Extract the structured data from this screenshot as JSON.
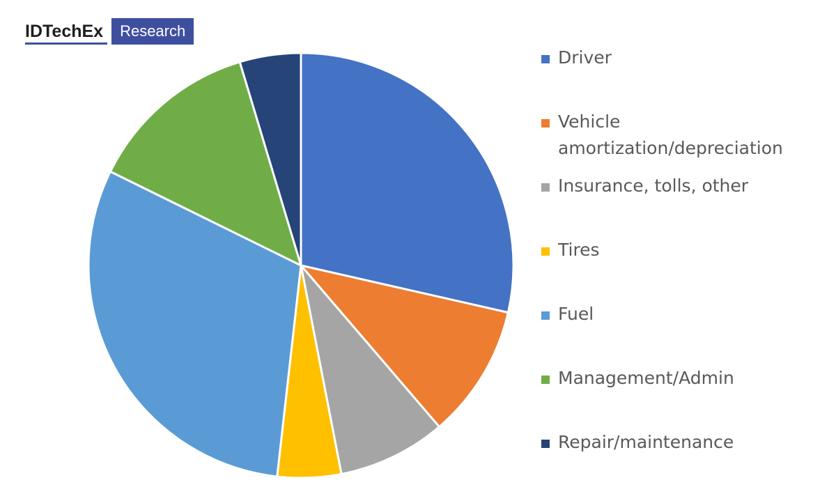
{
  "brand": {
    "name": "IDTechEx",
    "badge": "Research"
  },
  "chart_data": {
    "type": "pie",
    "title": "",
    "start_angle_deg": 0,
    "direction": "clockwise",
    "legend_position": "right",
    "categories": [
      "Driver",
      "Vehicle amortization/depreciation",
      "Insurance, tolls, other",
      "Tires",
      "Fuel",
      "Management/Admin",
      "Repair/maintenance"
    ],
    "values": [
      29.5,
      10.5,
      8.5,
      5.0,
      31.5,
      13.5,
      4.8
    ],
    "colors": [
      "#4472c4",
      "#ed7d31",
      "#a5a5a5",
      "#ffc000",
      "#5b9bd5",
      "#70ad47",
      "#264478"
    ]
  }
}
